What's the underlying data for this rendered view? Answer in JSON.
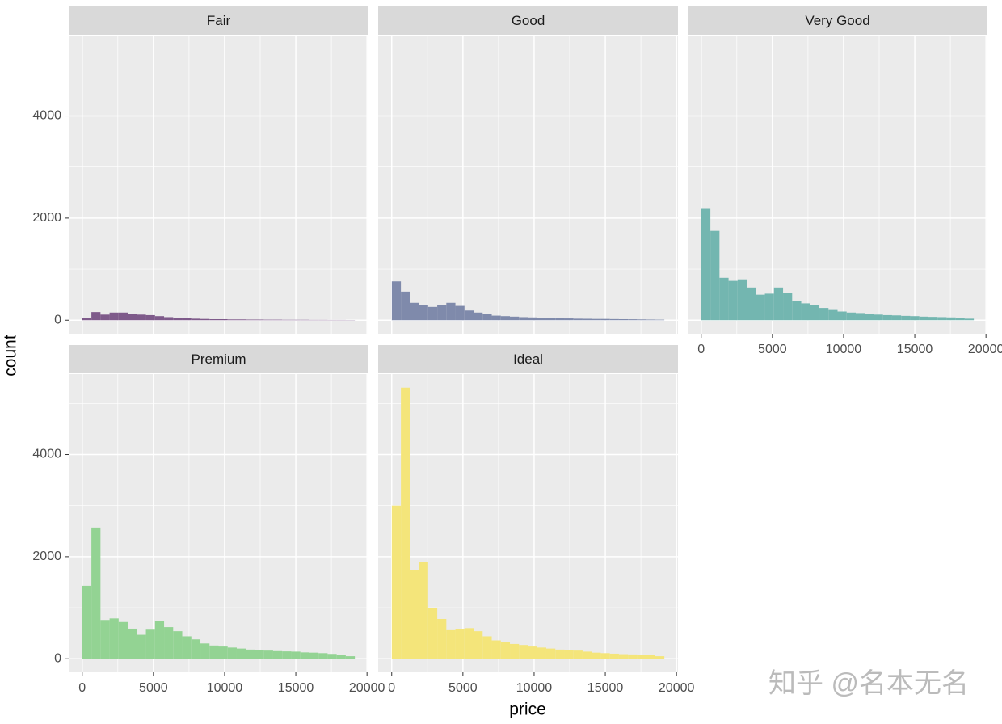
{
  "chart_data": [
    {
      "type": "histogram",
      "title": "Fair",
      "color": "#7e5a8a",
      "bins": [
        7,
        645,
        1283,
        1921,
        2559,
        3197,
        3835,
        4473,
        5111,
        5749,
        6387,
        7025,
        7663,
        8301,
        8939,
        9577,
        10215,
        10853,
        11491,
        12129,
        12767,
        13405,
        14043,
        14681,
        15319,
        15957,
        16595,
        17233,
        17871,
        18509,
        19147
      ],
      "counts": [
        40,
        160,
        110,
        150,
        150,
        130,
        110,
        100,
        80,
        60,
        50,
        40,
        30,
        25,
        20,
        20,
        15,
        15,
        12,
        12,
        10,
        10,
        8,
        8,
        8,
        6,
        6,
        5,
        5,
        4
      ],
      "xlim": [
        -950,
        20104
      ],
      "ylim": [
        -265,
        5575
      ],
      "xticks": [
        0,
        5000,
        10000,
        15000,
        20000
      ],
      "yticks": [
        0,
        2000,
        4000
      ],
      "minor_xticks": [
        2500,
        7500,
        12500,
        17500
      ],
      "minor_yticks": [
        1000,
        3000,
        5000
      ],
      "grid": true
    },
    {
      "type": "histogram",
      "title": "Good",
      "color": "#7f8aab",
      "bins": [
        7,
        645,
        1283,
        1921,
        2559,
        3197,
        3835,
        4473,
        5111,
        5749,
        6387,
        7025,
        7663,
        8301,
        8939,
        9577,
        10215,
        10853,
        11491,
        12129,
        12767,
        13405,
        14043,
        14681,
        15319,
        15957,
        16595,
        17233,
        17871,
        18509,
        19147
      ],
      "counts": [
        760,
        560,
        340,
        300,
        260,
        300,
        340,
        280,
        190,
        150,
        120,
        90,
        80,
        70,
        60,
        55,
        50,
        45,
        40,
        35,
        30,
        28,
        25,
        25,
        22,
        20,
        18,
        15,
        12,
        10
      ],
      "xlim": [
        -950,
        20104
      ],
      "ylim": [
        -265,
        5575
      ],
      "xticks": [
        0,
        5000,
        10000,
        15000,
        20000
      ],
      "yticks": [
        0,
        2000,
        4000
      ],
      "minor_xticks": [
        2500,
        7500,
        12500,
        17500
      ],
      "minor_yticks": [
        1000,
        3000,
        5000
      ],
      "grid": true
    },
    {
      "type": "histogram",
      "title": "Very Good",
      "color": "#73b6b0",
      "bins": [
        7,
        645,
        1283,
        1921,
        2559,
        3197,
        3835,
        4473,
        5111,
        5749,
        6387,
        7025,
        7663,
        8301,
        8939,
        9577,
        10215,
        10853,
        11491,
        12129,
        12767,
        13405,
        14043,
        14681,
        15319,
        15957,
        16595,
        17233,
        17871,
        18509,
        19147
      ],
      "counts": [
        2180,
        1750,
        830,
        770,
        800,
        640,
        500,
        520,
        640,
        540,
        380,
        330,
        290,
        240,
        200,
        170,
        150,
        140,
        120,
        110,
        100,
        95,
        85,
        80,
        70,
        65,
        60,
        55,
        45,
        30
      ],
      "xlim": [
        -950,
        20104
      ],
      "ylim": [
        -265,
        5575
      ],
      "xticks": [
        0,
        5000,
        10000,
        15000,
        20000
      ],
      "yticks": [
        0,
        2000,
        4000
      ],
      "minor_xticks": [
        2500,
        7500,
        12500,
        17500
      ],
      "minor_yticks": [
        1000,
        3000,
        5000
      ],
      "grid": true
    },
    {
      "type": "histogram",
      "title": "Premium",
      "color": "#93d393",
      "bins": [
        7,
        645,
        1283,
        1921,
        2559,
        3197,
        3835,
        4473,
        5111,
        5749,
        6387,
        7025,
        7663,
        8301,
        8939,
        9577,
        10215,
        10853,
        11491,
        12129,
        12767,
        13405,
        14043,
        14681,
        15319,
        15957,
        16595,
        17233,
        17871,
        18509,
        19147
      ],
      "counts": [
        1430,
        2570,
        760,
        790,
        720,
        590,
        470,
        570,
        740,
        620,
        540,
        440,
        380,
        300,
        260,
        240,
        220,
        200,
        180,
        170,
        160,
        150,
        145,
        140,
        125,
        120,
        110,
        95,
        80,
        50
      ],
      "xlim": [
        -950,
        20104
      ],
      "ylim": [
        -265,
        5575
      ],
      "xticks": [
        0,
        5000,
        10000,
        15000,
        20000
      ],
      "yticks": [
        0,
        2000,
        4000
      ],
      "minor_xticks": [
        2500,
        7500,
        12500,
        17500
      ],
      "minor_yticks": [
        1000,
        3000,
        5000
      ],
      "grid": true
    },
    {
      "type": "histogram",
      "title": "Ideal",
      "color": "#f4e57a",
      "bins": [
        7,
        645,
        1283,
        1921,
        2559,
        3197,
        3835,
        4473,
        5111,
        5749,
        6387,
        7025,
        7663,
        8301,
        8939,
        9577,
        10215,
        10853,
        11491,
        12129,
        12767,
        13405,
        14043,
        14681,
        15319,
        15957,
        16595,
        17233,
        17871,
        18509,
        19147
      ],
      "counts": [
        3000,
        5310,
        1730,
        1900,
        1000,
        780,
        560,
        580,
        600,
        540,
        440,
        360,
        330,
        290,
        270,
        240,
        220,
        200,
        180,
        170,
        160,
        140,
        120,
        110,
        100,
        90,
        85,
        80,
        70,
        50
      ],
      "xlim": [
        -950,
        20104
      ],
      "ylim": [
        -265,
        5575
      ],
      "xticks": [
        0,
        5000,
        10000,
        15000,
        20000
      ],
      "yticks": [
        0,
        2000,
        4000
      ],
      "minor_xticks": [
        2500,
        7500,
        12500,
        17500
      ],
      "minor_yticks": [
        1000,
        3000,
        5000
      ],
      "grid": true
    }
  ],
  "xlabel": "price",
  "ylabel": "count",
  "watermark": "知乎 @名本无名"
}
